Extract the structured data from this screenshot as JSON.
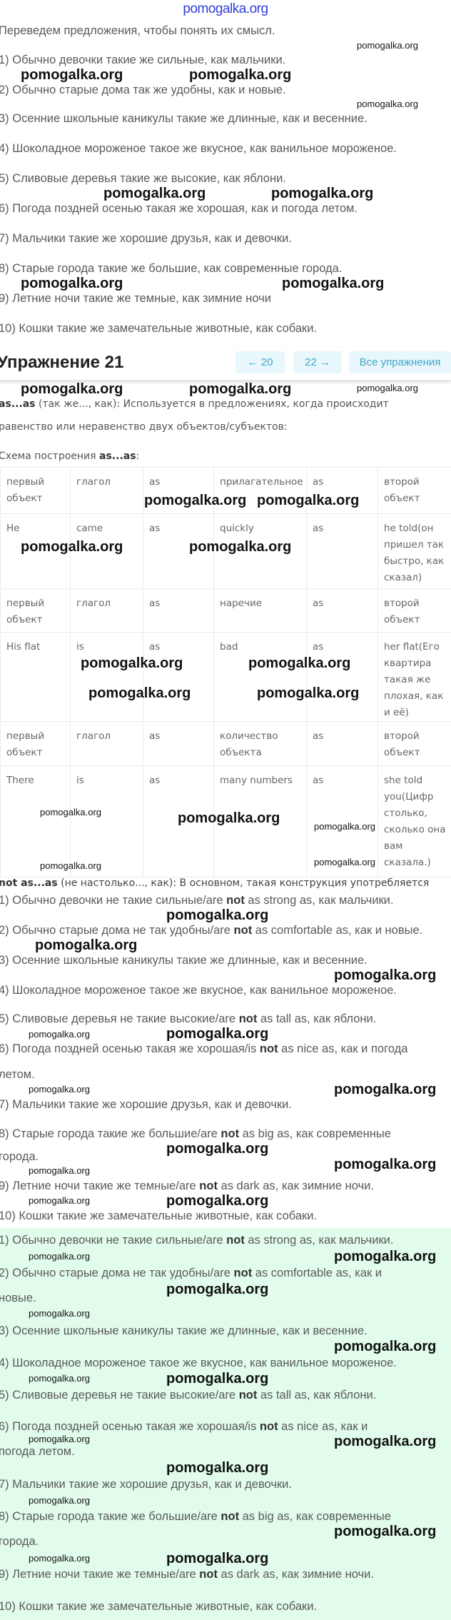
{
  "watermark": "pomogalka.org",
  "intro": {
    "lead": "Переведем предложения, чтобы понять их смысл.",
    "items": [
      "1) Обычно девочки такие же сильные, как мальчики.",
      "2) Обычно старые дома так же удобны, как и новые.",
      "3) Осенние школьные каникулы такие же длинные, как и весенние.",
      "4) Шоколадное мороженое такое же вкусное, как ванильное мороженое.",
      "5) Сливовые деревья такие же высокие, как яблони.",
      "6) Погода поздней осенью такая же хорошая, как и погода летом.",
      "7) Мальчики такие же хорошие друзья, как и девочки.",
      "8) Старые города такие же большие, как современные города.",
      "9) Летние ночи такие же темные, как зимние ночи",
      "10) Кошки такие же замечательные животные, как собаки."
    ]
  },
  "header": {
    "title": "Упражнение 21",
    "prev_label": "← 20",
    "next_label": "22 →",
    "all_label": "Все упражнения",
    "accent_color": "#3ea7c9"
  },
  "rule": {
    "term": "as...as",
    "desc_line1": " (так же..., как): Используется в предложениях, когда происходит",
    "desc_line2": "равенство или неравенство двух объектов/субъектов:",
    "scheme_prefix": "Схема построения ",
    "scheme_term": "as...as",
    "scheme_suffix": ":"
  },
  "table": {
    "rows": [
      [
        "первый объект",
        "глагол",
        "as",
        "прилагательное",
        "as",
        "второй объект"
      ],
      [
        "He",
        "came",
        "as",
        "quickly",
        "as",
        "he told(он пришел так быстро, как сказал)"
      ],
      [
        "первый объект",
        "глагол",
        "as",
        "наречие",
        "as",
        "второй объект"
      ],
      [
        "His flat",
        "is",
        "as",
        "bad",
        "as",
        "her flat(Его квартира такая же плохая, как и её)"
      ],
      [
        "первый объект",
        "глагол",
        "as",
        "количество объекта",
        "as",
        "второй объект"
      ],
      [
        "There",
        "is",
        "as",
        "many numbers",
        "as",
        "she told you(Цифр столько, сколько она вам сказала.)"
      ]
    ]
  },
  "not_rule": {
    "term": "not as...as",
    "desc": " (не настолько..., как): В основном, такая конструкция употребляется"
  },
  "list_not": [
    {
      "pre": "1) Обычно девочки не такие сильные/are ",
      "bold": "not",
      "post": " as strong as, как мальчики."
    },
    {
      "pre": "2) Обычно старые дома не так удобны/are ",
      "bold": "not",
      "post": " as comfortable as, как и новые."
    },
    {
      "pre": "3) Осенние школьные каникулы такие же длинные, как и весенние."
    },
    {
      "pre": "4) Шоколадное мороженое такое же вкусное, как ванильное мороженое."
    },
    {
      "pre": "5) Сливовые деревья не такие высокие/are ",
      "bold": "not",
      "post": " as tall as, как яблони."
    },
    {
      "pre": "6) Погода поздней осенью такая же хорошая/is ",
      "bold": "not",
      "post": " as nice as, как и погода",
      "cont": "летом."
    },
    {
      "pre": "7) Мальчики такие же хорошие друзья, как и девочки."
    },
    {
      "pre": "8) Старые города такие же большие/are ",
      "bold": "not",
      "post": " as big as, как современные",
      "cont": "города."
    },
    {
      "pre": "9) Летние ночи такие же темные/are ",
      "bold": "not",
      "post": " as dark as, как зимние ночи."
    },
    {
      "pre": "10) Кошки такие же замечательные животные, как собаки."
    }
  ],
  "answer": {
    "background_color": "#e2fcec",
    "items": [
      {
        "pre": "1) Обычно девочки не такие сильные/are ",
        "bold": "not",
        "post": " as strong as, как мальчики."
      },
      {
        "pre": "2) Обычно старые дома не так удобны/are ",
        "bold": "not",
        "post": " as comfortable as, как и",
        "cont": "новые."
      },
      {
        "pre": "3) Осенние школьные каникулы такие же длинные, как и весенние."
      },
      {
        "pre": "4) Шоколадное мороженое такое же вкусное, как ванильное мороженое."
      },
      {
        "pre": "5) Сливовые деревья не такие высокие/are ",
        "bold": "not",
        "post": " as tall as, как яблони."
      },
      {
        "pre": "6) Погода поздней осенью такая же хорошая/is ",
        "bold": "not",
        "post": " as nice as, как и",
        "cont": "погода летом."
      },
      {
        "pre": "7) Мальчики такие же хорошие друзья, как и девочки."
      },
      {
        "pre": "8) Старые города такие же большие/are ",
        "bold": "not",
        "post": " as big as, как современные",
        "cont": "города."
      },
      {
        "pre": "9) Летние ночи такие же темные/are ",
        "bold": "not",
        "post": " as dark as, как зимние ночи."
      },
      {
        "pre": "10) Кошки такие же замечательные животные, как собаки."
      }
    ]
  }
}
